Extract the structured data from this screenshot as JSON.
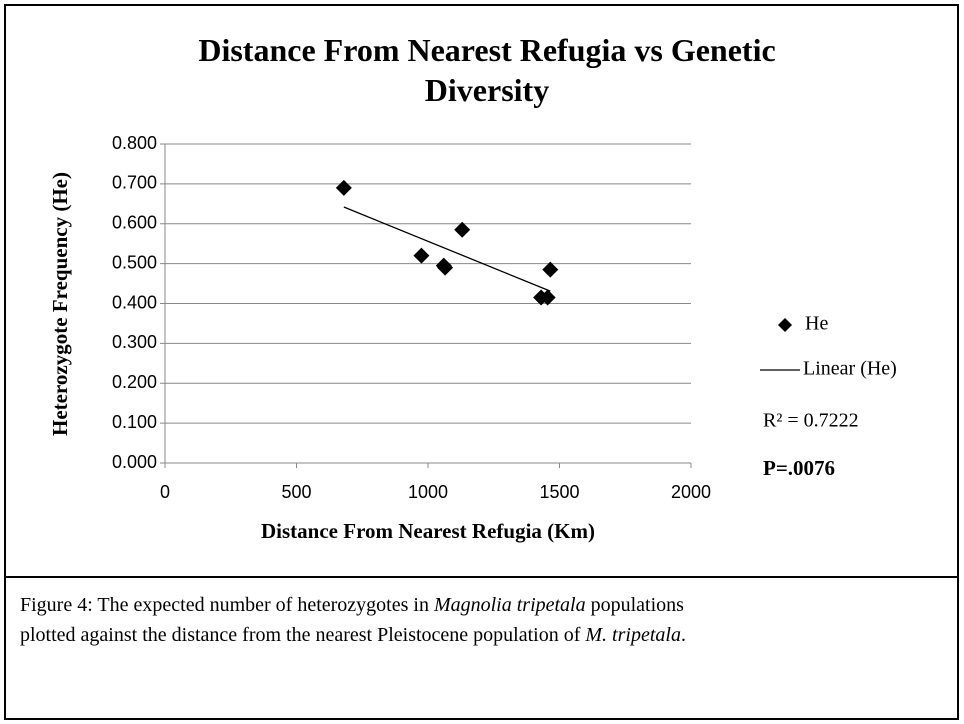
{
  "chart_data": {
    "type": "scatter",
    "title": "Distance From Nearest Refugia vs Genetic Diversity",
    "x_label": "Distance From Nearest Refugia (Km)",
    "y_label": "Heterozygote Frequency (He)",
    "series": [
      {
        "name": "He",
        "color": "#000000",
        "x": [
          680,
          975,
          1060,
          1065,
          1130,
          1430,
          1455,
          1465
        ],
        "values": [
          0.69,
          0.52,
          0.495,
          0.49,
          0.585,
          0.415,
          0.415,
          0.485
        ]
      },
      {
        "name": "Linear (He)",
        "color": "#000000",
        "kind": "trendline",
        "x": [
          680,
          1465
        ],
        "values": [
          0.642,
          0.431
        ]
      }
    ],
    "annotations": [
      "R² = 0.7222",
      "P=.0076"
    ],
    "xlim": [
      0,
      2000
    ],
    "xticks": [
      0,
      500,
      1000,
      1500,
      2000
    ],
    "ylim": [
      0,
      0.8
    ],
    "yticks": [
      {
        "value": 0,
        "label": "0.000"
      },
      {
        "value": 0.1,
        "label": "0.100"
      },
      {
        "value": 0.2,
        "label": "0.200"
      },
      {
        "value": 0.3,
        "label": "0.300"
      },
      {
        "value": 0.4,
        "label": "0.400"
      },
      {
        "value": 0.5,
        "label": "0.500"
      },
      {
        "value": 0.6,
        "label": "0.600"
      },
      {
        "value": 0.7,
        "label": "0.700"
      },
      {
        "value": 0.8,
        "label": "0.800"
      }
    ],
    "grid": true,
    "legend": "right"
  },
  "caption": {
    "prefix": "Figure 4: The expected number of heterozygotes in ",
    "species": "Magnolia tripetala",
    "middle1": " populations",
    "middle2": "plotted against the distance from the nearest Pleistocene population of ",
    "abbrev": "M. tripetala",
    "suffix": "."
  }
}
